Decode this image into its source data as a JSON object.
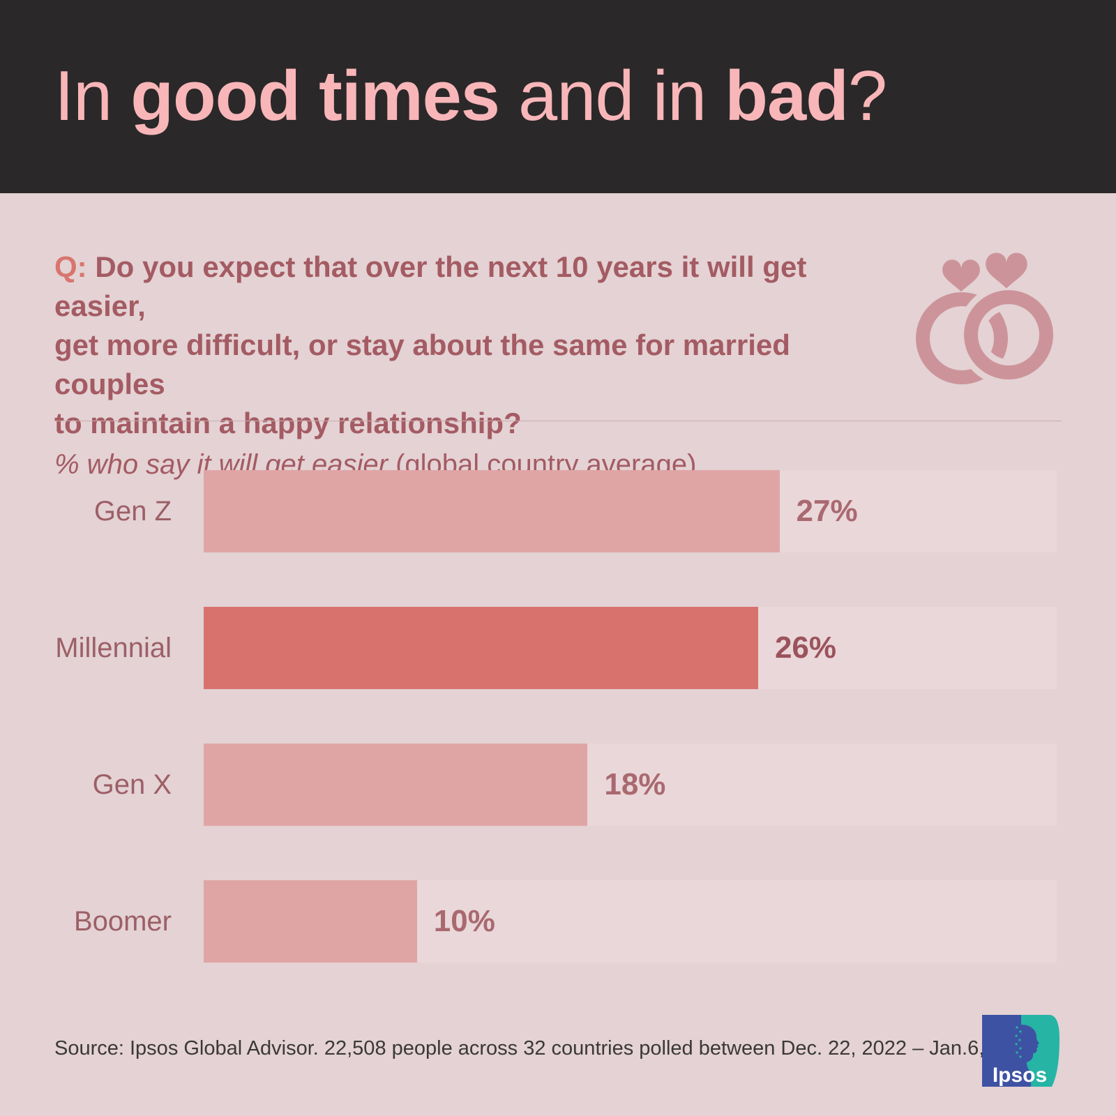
{
  "header": {
    "title": {
      "p1": "In ",
      "p2": "good times",
      "p3": " and in ",
      "p4": "bad",
      "p5": "?"
    }
  },
  "question": {
    "prefix": "Q: ",
    "text": "Do you expect that over the next 10 years it will get easier,\nget more difficult, or stay about the same for married couples\nto maintain a happy relationship?",
    "subtitle_italic": "% who say it will get easier",
    "subtitle_note": " (global country average)"
  },
  "icons": {
    "rings": "wedding-rings-with-hearts-icon"
  },
  "chart_data": {
    "type": "bar",
    "orientation": "horizontal",
    "title": "% who say it will get easier (global country average)",
    "categories": [
      "Gen Z",
      "Millennial",
      "Gen X",
      "Boomer"
    ],
    "values": [
      27,
      26,
      18,
      10
    ],
    "value_labels": [
      "27%",
      "26%",
      "18%",
      "10%"
    ],
    "xlabel": "",
    "ylabel": "",
    "xlim": [
      0,
      40
    ],
    "xmax": 40,
    "grid": false,
    "legend": null,
    "highlight_index": 1,
    "colors": {
      "fill": "#DFA5A4",
      "highlight": "#D8726D",
      "track": "#EAD7D9",
      "label": "#9C5F66",
      "value": "#A96970",
      "value_highlight": "#9B535B"
    }
  },
  "footer": {
    "source": "Source: Ipsos Global Advisor. 22,508 people across 32 countries polled between Dec. 22, 2022 – Jan.6, 2023.",
    "logo_text": "Ipsos"
  },
  "theme": {
    "header_bg": "#2B2829",
    "title_pink": "#F8B6B9",
    "body_bg": "#E4D2D4",
    "rings_color": "#CC949A",
    "logo_blue": "#3E52A3",
    "logo_teal": "#26B4A5"
  }
}
